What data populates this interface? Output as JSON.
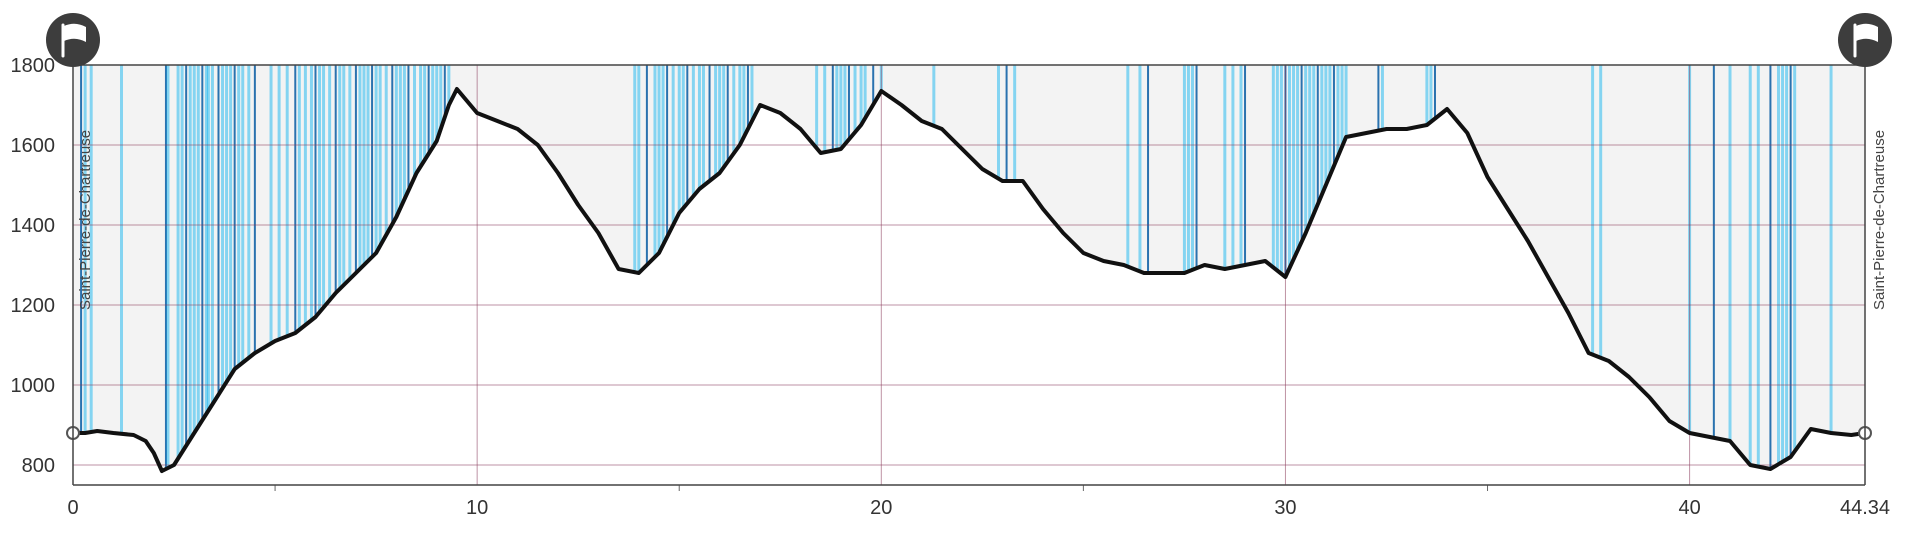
{
  "chart_data": {
    "type": "area",
    "title": "",
    "xlabel": "",
    "ylabel": "",
    "xlim": [
      0,
      44.34
    ],
    "ylim": [
      750,
      1800
    ],
    "x_ticks": [
      0,
      10,
      20,
      30,
      40
    ],
    "y_ticks": [
      800,
      1000,
      1200,
      1400,
      1600,
      1800
    ],
    "start_label": "Saint-Pierre-de-Chartreuse",
    "end_label": "Saint-Pierre-de-Chartreuse",
    "start_distance_label": "0",
    "end_distance_label": "44.34",
    "colors": {
      "profile": "#111111",
      "grid": "#8a3a5a",
      "marker": "#00b0f0",
      "marker_dark": "#1565a8",
      "sky": "#f3f3f3"
    },
    "icons": [
      "start-flag-icon",
      "end-flag-icon"
    ],
    "series": [
      {
        "x": [
          0,
          0.3,
          0.6,
          1.0,
          1.5,
          1.8,
          2.0,
          2.2,
          2.5,
          3.0,
          3.5,
          4.0,
          4.5,
          5.0,
          5.5,
          6.0,
          6.5,
          7.0,
          7.5,
          8.0,
          8.5,
          9.0,
          9.3,
          9.5,
          10.0,
          10.5,
          11.0,
          11.5,
          12.0,
          12.5,
          13.0,
          13.5,
          14.0,
          14.5,
          15.0,
          15.5,
          16.0,
          16.5,
          17.0,
          17.5,
          18.0,
          18.5,
          19.0,
          19.5,
          20.0,
          20.5,
          21.0,
          21.5,
          22.0,
          22.5,
          23.0,
          23.5,
          24.0,
          24.5,
          25.0,
          25.5,
          26.0,
          26.5,
          27.0,
          27.5,
          28.0,
          28.5,
          29.0,
          29.5,
          30.0,
          30.5,
          31.0,
          31.5,
          32.0,
          32.5,
          33.0,
          33.5,
          34.0,
          34.5,
          35.0,
          35.5,
          36.0,
          36.5,
          37.0,
          37.5,
          38.0,
          38.5,
          39.0,
          39.5,
          40.0,
          40.5,
          41.0,
          41.5,
          42.0,
          42.5,
          43.0,
          43.5,
          44.0,
          44.34
        ],
        "y": [
          880,
          880,
          885,
          880,
          875,
          860,
          830,
          785,
          800,
          880,
          960,
          1040,
          1080,
          1110,
          1130,
          1170,
          1230,
          1280,
          1330,
          1420,
          1530,
          1610,
          1700,
          1740,
          1680,
          1660,
          1640,
          1600,
          1530,
          1450,
          1380,
          1290,
          1280,
          1330,
          1430,
          1490,
          1530,
          1600,
          1700,
          1680,
          1640,
          1580,
          1590,
          1650,
          1735,
          1700,
          1660,
          1640,
          1590,
          1540,
          1510,
          1510,
          1440,
          1380,
          1330,
          1310,
          1300,
          1280,
          1280,
          1280,
          1300,
          1290,
          1300,
          1310,
          1270,
          1380,
          1500,
          1620,
          1630,
          1640,
          1640,
          1650,
          1690,
          1630,
          1520,
          1440,
          1360,
          1270,
          1180,
          1080,
          1060,
          1020,
          970,
          910,
          880,
          870,
          860,
          800,
          790,
          820,
          890,
          880,
          875,
          880
        ]
      }
    ],
    "markers": [
      0.2,
      0.3,
      0.45,
      1.2,
      2.3,
      2.35,
      2.6,
      2.7,
      2.8,
      2.9,
      3.0,
      3.1,
      3.2,
      3.3,
      3.35,
      3.45,
      3.6,
      3.7,
      3.8,
      3.9,
      4.0,
      4.1,
      4.2,
      4.35,
      4.5,
      4.9,
      5.1,
      5.3,
      5.5,
      5.6,
      5.75,
      5.9,
      6.0,
      6.1,
      6.2,
      6.35,
      6.5,
      6.6,
      6.7,
      6.85,
      7.0,
      7.1,
      7.2,
      7.3,
      7.4,
      7.5,
      7.6,
      7.75,
      7.9,
      8.0,
      8.1,
      8.2,
      8.3,
      8.45,
      8.6,
      8.7,
      8.8,
      8.9,
      9.0,
      9.1,
      9.2,
      9.3,
      13.9,
      14.0,
      14.2,
      14.4,
      14.5,
      14.6,
      14.7,
      14.85,
      15.0,
      15.1,
      15.2,
      15.35,
      15.5,
      15.6,
      15.75,
      15.9,
      16.0,
      16.1,
      16.2,
      16.35,
      16.5,
      16.6,
      16.7,
      16.8,
      18.4,
      18.6,
      18.8,
      18.9,
      19.0,
      19.1,
      19.2,
      19.35,
      19.5,
      19.6,
      19.8,
      20.0,
      21.3,
      22.9,
      23.1,
      23.3,
      26.1,
      26.4,
      26.6,
      27.5,
      27.6,
      27.7,
      27.8,
      28.5,
      28.7,
      28.9,
      29.0,
      29.7,
      29.8,
      29.9,
      30.0,
      30.1,
      30.2,
      30.3,
      30.4,
      30.5,
      30.6,
      30.7,
      30.8,
      30.9,
      31.0,
      31.1,
      31.2,
      31.3,
      31.4,
      31.5,
      32.3,
      32.4,
      33.5,
      33.6,
      33.7,
      37.6,
      37.8,
      40.0,
      40.6,
      41.0,
      41.5,
      41.7,
      42.0,
      42.2,
      42.3,
      42.4,
      42.5,
      42.6,
      43.5
    ]
  }
}
